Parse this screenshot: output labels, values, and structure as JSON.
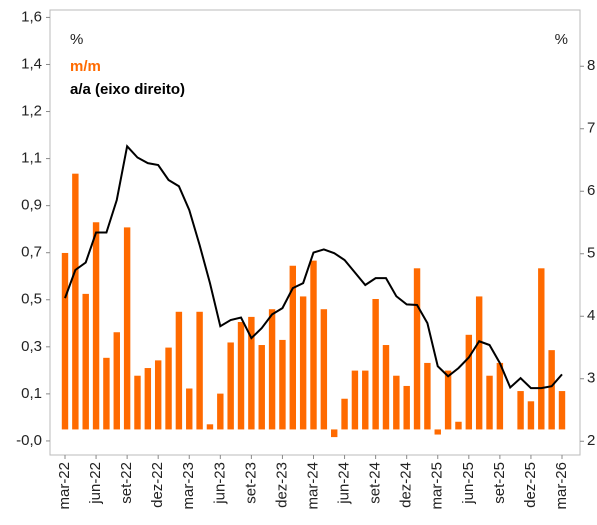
{
  "chart_data": {
    "type": "bar_line",
    "y_label": "%",
    "y2_label": "%",
    "categories": [
      "mar-22",
      null,
      null,
      "jun-22",
      null,
      null,
      "set-22",
      null,
      null,
      "dez-22",
      null,
      null,
      "mar-23",
      null,
      null,
      "jun-23",
      null,
      null,
      "set-23",
      null,
      null,
      "dez-23",
      null,
      null,
      "mar-24",
      null,
      null,
      "jun-24",
      null,
      null,
      "set-24",
      null,
      null,
      "dez-24",
      null,
      null,
      "mar-25",
      null,
      null,
      "jun-25",
      null,
      null,
      "set-25",
      null,
      null,
      "dez-25",
      null,
      null,
      "mar-26"
    ],
    "series": [
      {
        "name": "m/m",
        "type": "bar",
        "color": "#ff6a00",
        "axis": "y",
        "values": [
          0.69,
          1.0,
          0.53,
          0.81,
          0.28,
          0.38,
          0.79,
          0.21,
          0.24,
          0.27,
          0.32,
          0.46,
          0.16,
          0.46,
          0.02,
          0.14,
          0.34,
          0.42,
          0.44,
          0.33,
          0.47,
          0.35,
          0.64,
          0.52,
          0.66,
          0.47,
          -0.03,
          0.12,
          0.23,
          0.23,
          0.51,
          0.33,
          0.21,
          0.17,
          0.63,
          0.26,
          -0.02,
          0.23,
          0.03,
          0.37,
          0.52,
          0.21,
          0.26,
          0,
          0.15,
          0.11,
          0.63,
          0.31,
          0.15
        ]
      },
      {
        "name": "a/a (eixo direito)",
        "type": "line",
        "color": "#000000",
        "axis": "y2",
        "values": [
          4.29,
          4.74,
          4.86,
          5.34,
          5.34,
          5.86,
          6.72,
          6.54,
          6.45,
          6.42,
          6.18,
          6.08,
          5.7,
          5.14,
          4.53,
          3.84,
          3.94,
          3.98,
          3.65,
          3.81,
          4.03,
          4.13,
          4.45,
          4.53,
          5.02,
          5.07,
          5.01,
          4.9,
          4.7,
          4.5,
          4.61,
          4.61,
          4.32,
          4.19,
          4.18,
          3.89,
          3.2,
          3.04,
          3.17,
          3.34,
          3.6,
          3.54,
          3.25,
          2.86,
          3.01,
          2.85,
          2.85,
          2.88,
          3.07
        ]
      }
    ],
    "ylim": [
      -0.1,
      1.64
    ],
    "yticks": [
      {
        "value": -0.045,
        "label": "-0,0"
      },
      {
        "value": 0.139,
        "label": "0,1"
      },
      {
        "value": 0.323,
        "label": "0,3"
      },
      {
        "value": 0.507,
        "label": "0,5"
      },
      {
        "value": 0.691,
        "label": "0,7"
      },
      {
        "value": 0.875,
        "label": "0,9"
      },
      {
        "value": 1.059,
        "label": "1,1"
      },
      {
        "value": 1.243,
        "label": "1,2"
      },
      {
        "value": 1.427,
        "label": "1,4"
      },
      {
        "value": 1.611,
        "label": "1,6"
      }
    ],
    "y2lim": [
      1.78,
      8.9
    ],
    "y2ticks": [
      2,
      3,
      4,
      5,
      6,
      7,
      8
    ],
    "grid": false
  }
}
